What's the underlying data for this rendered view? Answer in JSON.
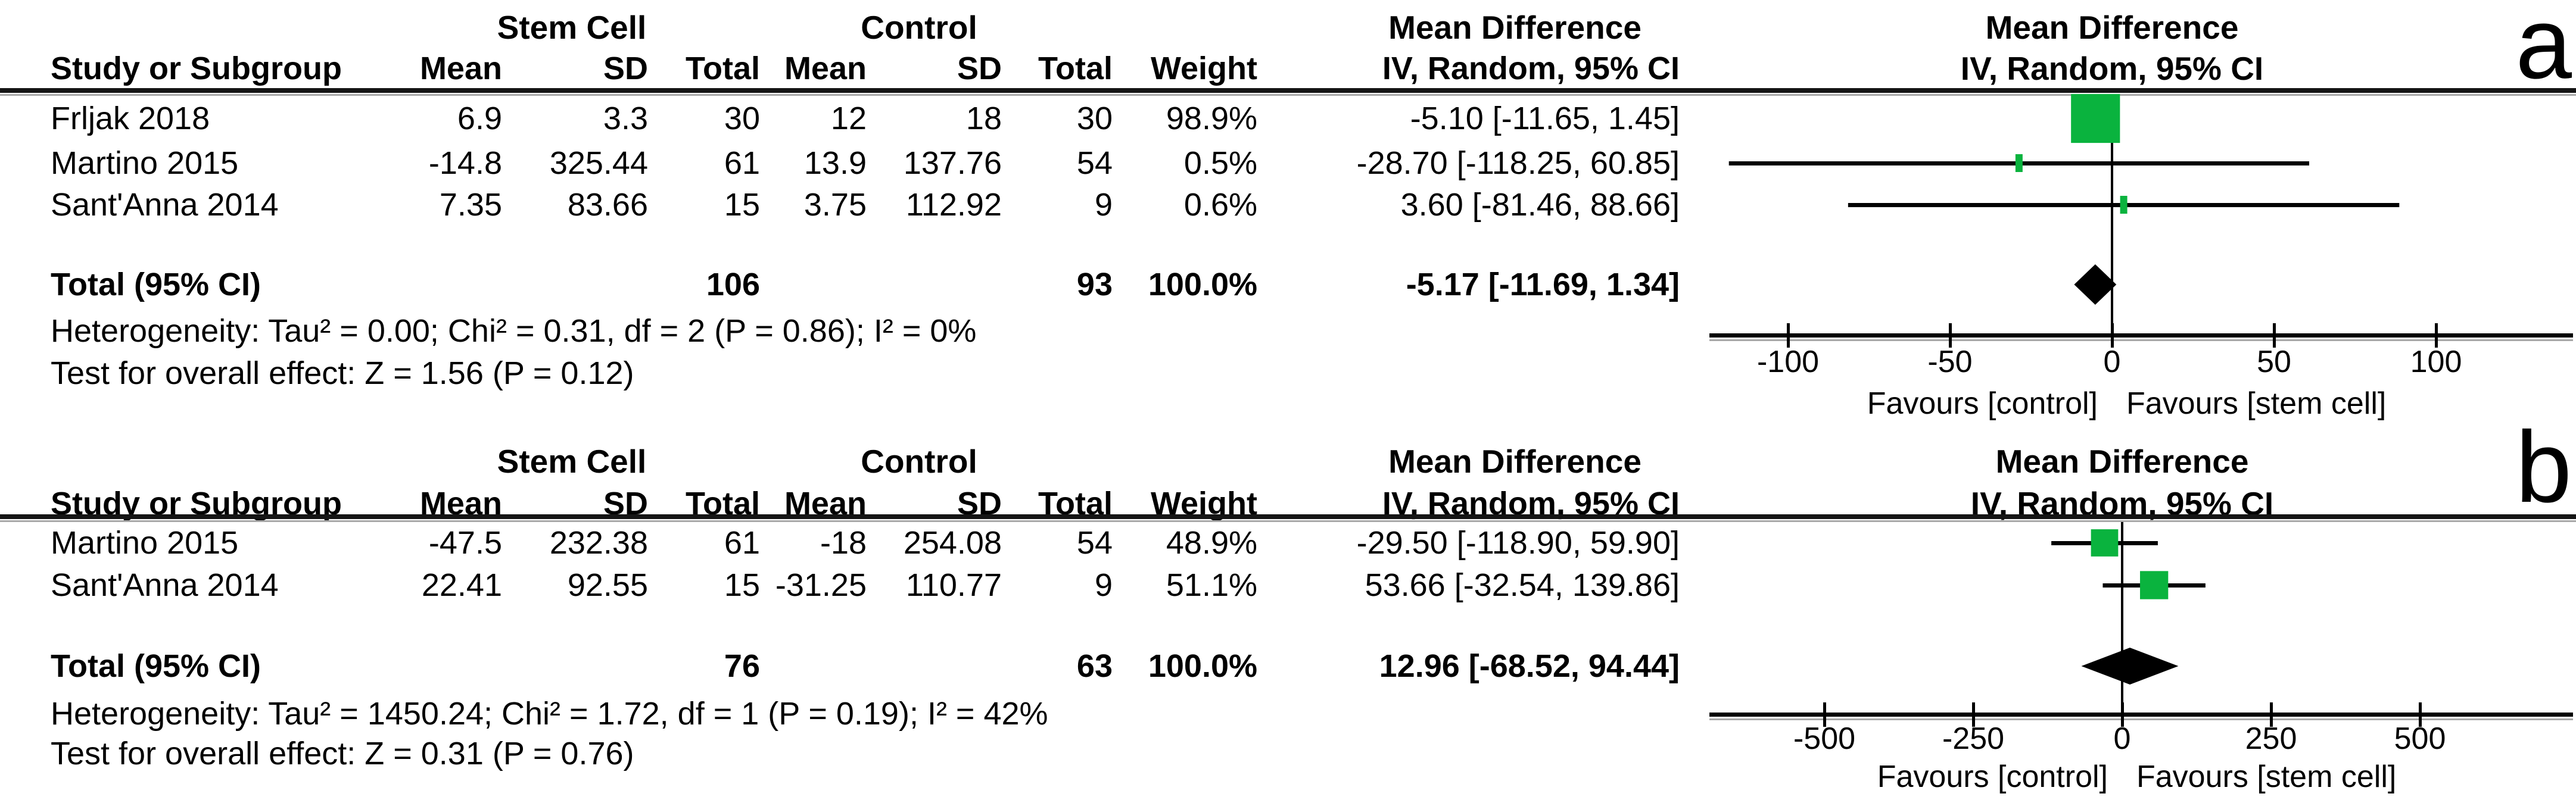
{
  "colors": {
    "marker_green": "#0ab33e",
    "line_black": "#000000",
    "shadow_gray": "#a8a8a8"
  },
  "chart_data": [
    {
      "type": "scatter",
      "chart_kind": "forest-plot",
      "panel_letter": "a",
      "effect_label": "Mean Difference",
      "method_label": "IV, Random, 95% CI",
      "group_headers": {
        "experimental": "Stem Cell",
        "control": "Control"
      },
      "col_headers": {
        "study": "Study or Subgroup",
        "mean": "Mean",
        "sd": "SD",
        "total": "Total",
        "weight": "Weight"
      },
      "rows": [
        {
          "study": "Frljak 2018",
          "e_mean": "6.9",
          "e_sd": "3.3",
          "e_total": "30",
          "c_mean": "12",
          "c_sd": "18",
          "c_total": "30",
          "weight": "98.9%",
          "w": 0.989,
          "est": -5.1,
          "lo": -11.65,
          "hi": 1.45,
          "ci_text": "-5.10 [-11.65, 1.45]"
        },
        {
          "study": "Martino 2015",
          "e_mean": "-14.8",
          "e_sd": "325.44",
          "e_total": "61",
          "c_mean": "13.9",
          "c_sd": "137.76",
          "c_total": "54",
          "weight": "0.5%",
          "w": 0.005,
          "est": -28.7,
          "lo": -118.25,
          "hi": 60.85,
          "ci_text": "-28.70 [-118.25, 60.85]"
        },
        {
          "study": "Sant'Anna 2014",
          "e_mean": "7.35",
          "e_sd": "83.66",
          "e_total": "15",
          "c_mean": "3.75",
          "c_sd": "112.92",
          "c_total": "9",
          "weight": "0.6%",
          "w": 0.006,
          "est": 3.6,
          "lo": -81.46,
          "hi": 88.66,
          "ci_text": "3.60 [-81.46, 88.66]"
        }
      ],
      "total": {
        "label": "Total (95% CI)",
        "e_total": "106",
        "c_total": "93",
        "weight": "100.0%",
        "est": -5.17,
        "lo": -11.69,
        "hi": 1.34,
        "ci_text": "-5.17 [-11.69, 1.34]"
      },
      "heterogeneity": "Heterogeneity: Tau² = 0.00; Chi² = 0.31, df = 2 (P = 0.86); I² = 0%",
      "overall_test": "Test for overall effect: Z = 1.56 (P = 0.12)",
      "axis": {
        "ticks": [
          -100,
          -50,
          0,
          50,
          100
        ],
        "tick_labels": [
          "-100",
          "-50",
          "0",
          "50",
          "100"
        ],
        "xlim": [
          -124,
          143
        ],
        "favours_left": "Favours [control]",
        "favours_right": "Favours [stem cell]"
      }
    },
    {
      "type": "scatter",
      "chart_kind": "forest-plot",
      "panel_letter": "b",
      "effect_label": "Mean Difference",
      "method_label": "IV, Random, 95% CI",
      "group_headers": {
        "experimental": "Stem Cell",
        "control": "Control"
      },
      "col_headers": {
        "study": "Study or Subgroup",
        "mean": "Mean",
        "sd": "SD",
        "total": "Total",
        "weight": "Weight"
      },
      "rows": [
        {
          "study": "Martino 2015",
          "e_mean": "-47.5",
          "e_sd": "232.38",
          "e_total": "61",
          "c_mean": "-18",
          "c_sd": "254.08",
          "c_total": "54",
          "weight": "48.9%",
          "w": 0.489,
          "est": -29.5,
          "lo": -118.9,
          "hi": 59.9,
          "ci_text": "-29.50 [-118.90, 59.90]"
        },
        {
          "study": "Sant'Anna 2014",
          "e_mean": "22.41",
          "e_sd": "92.55",
          "e_total": "15",
          "c_mean": "-31.25",
          "c_sd": "110.77",
          "c_total": "9",
          "weight": "51.1%",
          "w": 0.511,
          "est": 53.66,
          "lo": -32.54,
          "hi": 139.86,
          "ci_text": "53.66 [-32.54, 139.86]"
        }
      ],
      "total": {
        "label": "Total (95% CI)",
        "e_total": "76",
        "c_total": "63",
        "weight": "100.0%",
        "est": 12.96,
        "lo": -68.52,
        "hi": 94.44,
        "ci_text": "12.96 [-68.52, 94.44]"
      },
      "heterogeneity": "Heterogeneity: Tau² = 1450.24; Chi² = 1.72, df = 1 (P = 0.19); I² = 42%",
      "overall_test": "Test for overall effect: Z = 0.31 (P = 0.76)",
      "axis": {
        "ticks": [
          -500,
          -250,
          0,
          250,
          500
        ],
        "tick_labels": [
          "-500",
          "-250",
          "0",
          "250",
          "500"
        ],
        "xlim": [
          -560,
          580
        ],
        "favours_left": "Favours [control]",
        "favours_right": "Favours [stem cell]"
      }
    }
  ]
}
